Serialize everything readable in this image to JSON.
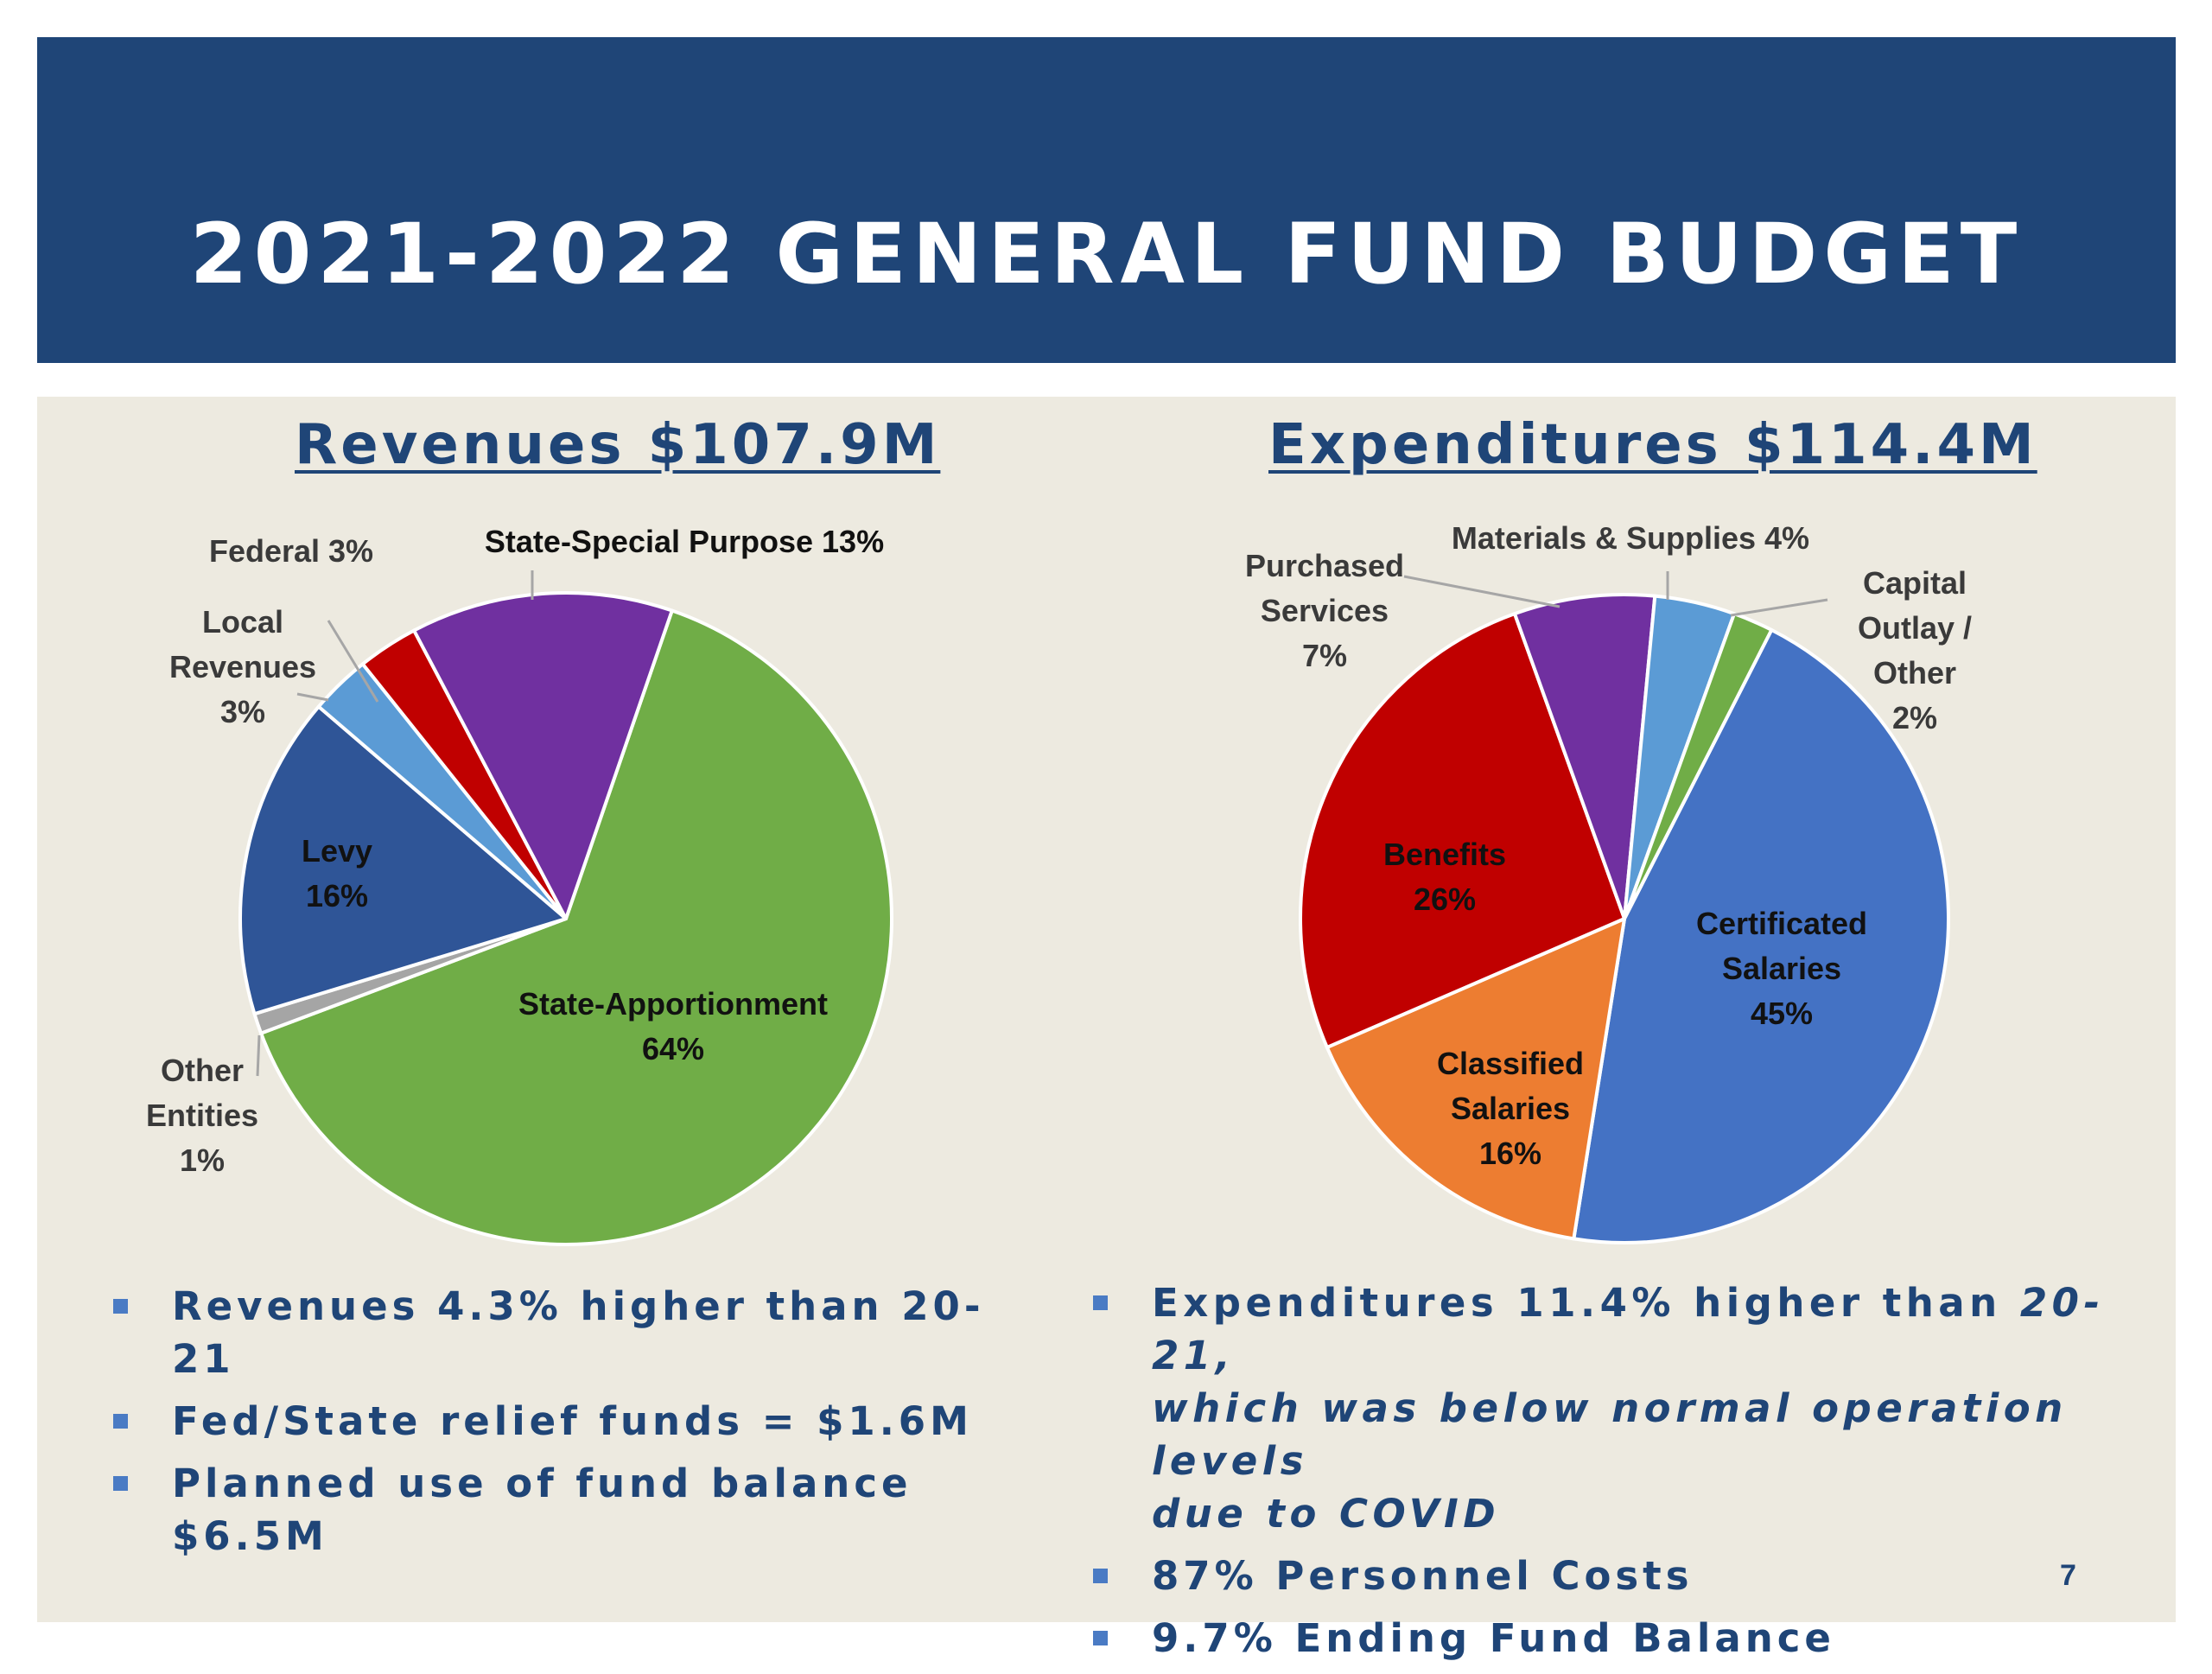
{
  "slide": {
    "title": "2021-2022 GENERAL FUND BUDGET",
    "page_number": "7"
  },
  "chart_data": [
    {
      "type": "pie",
      "title": "Revenues $107.9M",
      "slices": [
        {
          "label": "State-Apportionment",
          "value": 64,
          "pct_label": "64%",
          "color": "#70ad47"
        },
        {
          "label": "Other Entities",
          "value": 1,
          "pct_label": "1%",
          "color": "#a5a5a5"
        },
        {
          "label": "Levy",
          "value": 16,
          "pct_label": "16%",
          "color": "#2f5597"
        },
        {
          "label": "Local Revenues",
          "value": 3,
          "pct_label": "3%",
          "color": "#5b9bd5"
        },
        {
          "label": "Federal",
          "value": 3,
          "pct_label": "3%",
          "color": "#c00000"
        },
        {
          "label": "State-Special Purpose",
          "value": 13,
          "pct_label": "13%",
          "color": "#7030a0"
        }
      ],
      "labels_text": {
        "federal": "Federal 3%",
        "state_special": "State-Special Purpose  13%",
        "local": [
          "Local",
          "Revenues",
          "3%"
        ],
        "levy": [
          "Levy",
          "16%"
        ],
        "state_apport": [
          "State-Apportionment",
          "64%"
        ],
        "other": [
          "Other",
          "Entities",
          "1%"
        ]
      }
    },
    {
      "type": "pie",
      "title": "Expenditures $114.4M",
      "slices": [
        {
          "label": "Certificated Salaries",
          "value": 45,
          "pct_label": "45%",
          "color": "#4472c4"
        },
        {
          "label": "Classified Salaries",
          "value": 16,
          "pct_label": "16%",
          "color": "#ed7d31"
        },
        {
          "label": "Benefits",
          "value": 26,
          "pct_label": "26%",
          "color": "#c00000"
        },
        {
          "label": "Purchased Services",
          "value": 7,
          "pct_label": "7%",
          "color": "#7030a0"
        },
        {
          "label": "Materials & Supplies",
          "value": 4,
          "pct_label": "4%",
          "color": "#5b9bd5"
        },
        {
          "label": "Capital Outlay / Other",
          "value": 2,
          "pct_label": "2%",
          "color": "#70ad47"
        }
      ],
      "labels_text": {
        "purchased": [
          "Purchased",
          "Services",
          "7%"
        ],
        "materials": "Materials & Supplies 4%",
        "capital": [
          "Capital",
          "Outlay /",
          "Other",
          "2%"
        ],
        "benefits": [
          "Benefits",
          "26%"
        ],
        "certificated": [
          "Certificated",
          "Salaries",
          "45%"
        ],
        "classified": [
          "Classified",
          "Salaries",
          "16%"
        ]
      }
    }
  ],
  "bullets": {
    "left": [
      "Revenues 4.3% higher than 20-21",
      "Fed/State relief funds = $1.6M",
      "Planned use of fund balance $6.5M"
    ],
    "right": {
      "first_normal": "Expenditures 11.4% higher than ",
      "first_italic_line1": "20-21,",
      "first_italic_line2": "which was below normal operation levels",
      "first_italic_line3": "due to COVID",
      "second": "87% Personnel Costs",
      "third": "9.7% Ending Fund Balance"
    }
  }
}
